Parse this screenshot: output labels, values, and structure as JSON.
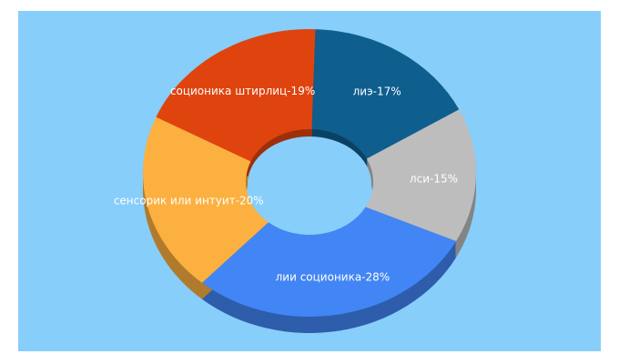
{
  "chart_data": {
    "type": "pie",
    "values": [
      17,
      15,
      28,
      20,
      19
    ],
    "value_labels": [
      "лиэ-17%",
      "лси-15%",
      "лии соционика-28%",
      "сенсорик или интуит-20%",
      "соционика штирлиц-19%"
    ],
    "colors": [
      "#0e5e8e",
      "#bdbdbd",
      "#4285f4",
      "#fbb040",
      "#e0440e"
    ]
  }
}
